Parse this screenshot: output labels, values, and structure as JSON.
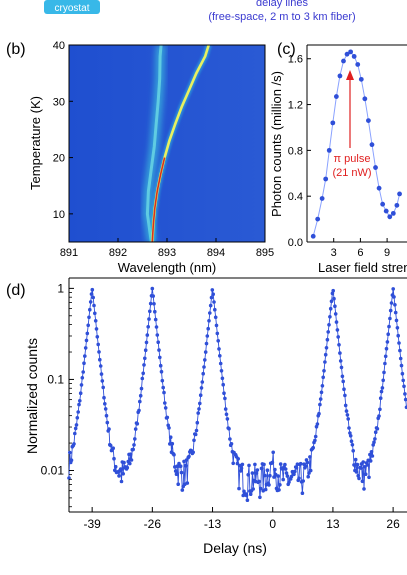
{
  "header": {
    "cryostat_label": "cryostat",
    "delay_line_title": "delay lines",
    "delay_line_detail": "(free-space, 2 m to 3 km fiber)"
  },
  "panel_b": {
    "label": "(b)",
    "xlabel": "Wavelength (nm)",
    "ylabel": "Temperature (K)",
    "xticks": [
      "891",
      "892",
      "893",
      "894",
      "895"
    ],
    "yticks": [
      "10",
      "20",
      "30",
      "40"
    ]
  },
  "panel_c": {
    "label": "(c)",
    "xlabel": "Laser field streng",
    "ylabel": "Photon counts (million /s)",
    "xticks": [
      "3",
      "6",
      "9"
    ],
    "yticks": [
      "0.0",
      "0.4",
      "0.8",
      "1.2",
      "1.6"
    ],
    "annotation_line1": "π pulse",
    "annotation_line2": "(21 nW)"
  },
  "panel_d": {
    "label": "(d)",
    "xlabel": "Delay (ns)",
    "ylabel": "Normalized counts",
    "xticks": [
      "-39",
      "-26",
      "-13",
      "0",
      "13",
      "26"
    ],
    "yticks": [
      "1",
      "0.1",
      "0.01"
    ]
  },
  "colors": {
    "series": "#2f4fd8",
    "heatmap_bg": "#2452c8",
    "annotation": "#e02020"
  },
  "chart_data": [
    {
      "type": "heatmap",
      "xlabel": "Wavelength (nm)",
      "ylabel": "Temperature (K)",
      "xlim": [
        891,
        895
      ],
      "ylim": [
        5,
        40
      ],
      "series": [
        {
          "name": "",
          "points": [
            [
              892.7,
              5
            ],
            [
              892.72,
              8
            ],
            [
              892.75,
              11
            ],
            [
              892.8,
              14
            ],
            [
              892.87,
              17
            ],
            [
              892.95,
              20
            ],
            [
              893.05,
              23
            ],
            [
              893.17,
              26
            ],
            [
              893.3,
              29
            ],
            [
              893.45,
              32
            ],
            [
              893.6,
              35
            ],
            [
              893.78,
              38
            ],
            [
              893.85,
              40
            ]
          ]
        },
        {
          "name": "",
          "points": [
            [
              892.68,
              5
            ],
            [
              892.6,
              10
            ],
            [
              892.62,
              14
            ],
            [
              892.68,
              18
            ],
            [
              892.74,
              22
            ],
            [
              892.78,
              26
            ],
            [
              892.82,
              30
            ],
            [
              892.85,
              34
            ],
            [
              892.86,
              38
            ],
            [
              892.88,
              40
            ]
          ]
        }
      ]
    },
    {
      "type": "scatter",
      "xlabel": "Laser field streng",
      "ylabel": "Photon counts (million /s)",
      "xlim": [
        0,
        10.5
      ],
      "ylim": [
        0,
        1.72
      ],
      "series": [
        {
          "name": "",
          "x": [
            0.7,
            1.2,
            1.7,
            2.1,
            2.5,
            2.9,
            3.3,
            3.7,
            4.1,
            4.5,
            4.9,
            5.3,
            5.7,
            6.1,
            6.5,
            6.9,
            7.3,
            7.7,
            8.1,
            8.5,
            8.9,
            9.3,
            9.7,
            10.1,
            10.4
          ],
          "y": [
            0.05,
            0.2,
            0.38,
            0.55,
            0.8,
            1.04,
            1.27,
            1.45,
            1.58,
            1.64,
            1.66,
            1.62,
            1.55,
            1.42,
            1.25,
            1.06,
            0.85,
            0.65,
            0.47,
            0.33,
            0.27,
            0.22,
            0.25,
            0.32,
            0.42
          ]
        }
      ],
      "annotations": [
        {
          "text": "π pulse (21 nW)",
          "x": 4.9,
          "y": 1.66
        }
      ]
    },
    {
      "type": "line",
      "xlabel": "Delay (ns)",
      "ylabel": "Normalized counts",
      "xlim": [
        -44,
        29
      ],
      "ylim": [
        0.0035,
        1.3
      ],
      "yscale": "log",
      "peaks": [
        {
          "x": -39,
          "y": 1.0
        },
        {
          "x": -26,
          "y": 1.0
        },
        {
          "x": -13,
          "y": 1.0
        },
        {
          "x": 0,
          "y": 0.012
        },
        {
          "x": 13,
          "y": 1.0
        },
        {
          "x": 26,
          "y": 1.0
        }
      ],
      "background_level": 0.008,
      "peak_width_ns": 0.9
    }
  ]
}
